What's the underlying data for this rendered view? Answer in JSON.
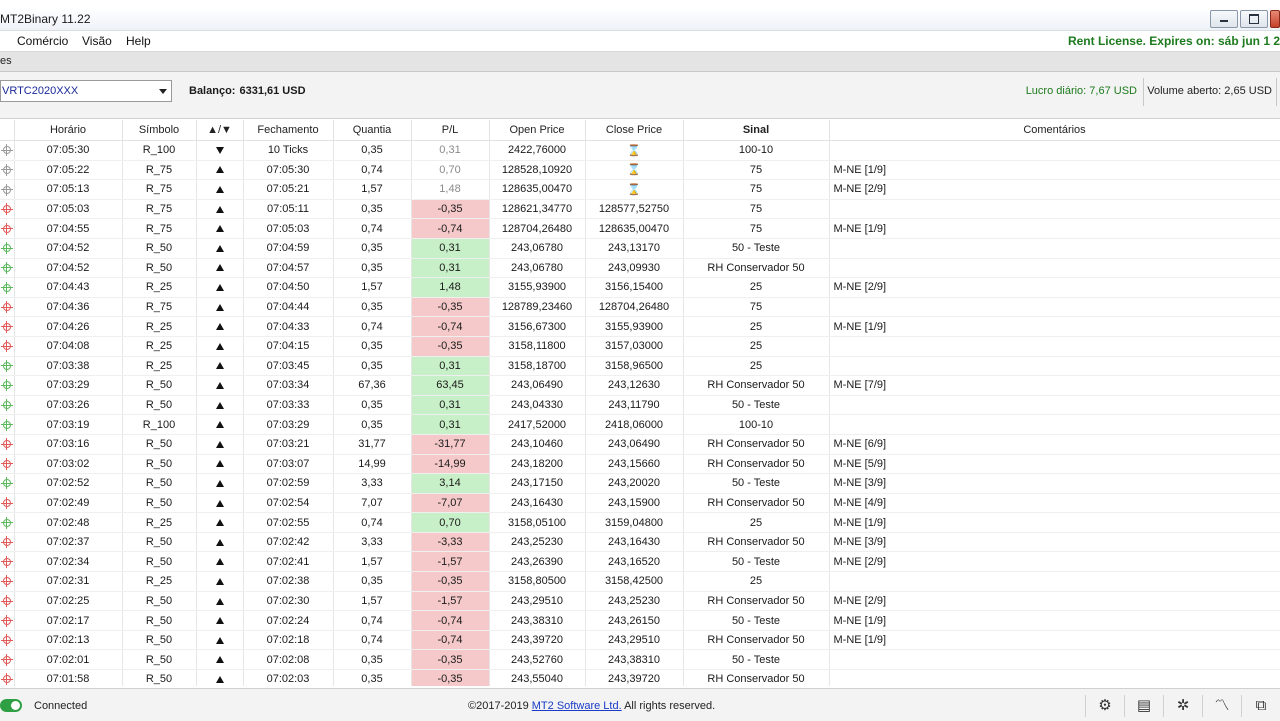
{
  "window": {
    "title": "MT2Binary 11.22"
  },
  "menu": {
    "items": [
      "Comércio",
      "Visão",
      "Help"
    ],
    "license": "Rent License. Expires on: sáb jun 1 2"
  },
  "tabstrip": {
    "label": "es"
  },
  "toolbar": {
    "account": "VRTC2020XXX",
    "balance_label": "Balanço:",
    "balance_value": "6331,61 USD",
    "lucro_label": "Lucro diário:",
    "lucro_value": "7,67 USD",
    "volume_label": "Volume aberto:",
    "volume_value": "2,65 USD"
  },
  "table": {
    "headers": [
      "Horário",
      "Símbolo",
      "▲/▼",
      "Fechamento",
      "Quantia",
      "P/L",
      "Open Price",
      "Close Price",
      "Sinal",
      "Comentários"
    ],
    "rows": [
      {
        "status": "open",
        "time": "07:05:30",
        "symbol": "R_100",
        "dir": "down",
        "close": "10 Ticks",
        "qty": "0,35",
        "pl": "0,31",
        "open": "2422,76000",
        "close_price": "⌛",
        "signal": "100-10",
        "comment": ""
      },
      {
        "status": "open",
        "time": "07:05:22",
        "symbol": "R_75",
        "dir": "up",
        "close": "07:05:30",
        "qty": "0,74",
        "pl": "0,70",
        "open": "128528,10920",
        "close_price": "⌛",
        "signal": "75",
        "comment": "M-NE [1/9]"
      },
      {
        "status": "open",
        "time": "07:05:13",
        "symbol": "R_75",
        "dir": "up",
        "close": "07:05:21",
        "qty": "1,57",
        "pl": "1,48",
        "open": "128635,00470",
        "close_price": "⌛",
        "signal": "75",
        "comment": "M-NE [2/9]"
      },
      {
        "status": "loss",
        "time": "07:05:03",
        "symbol": "R_75",
        "dir": "up",
        "close": "07:05:11",
        "qty": "0,35",
        "pl": "-0,35",
        "open": "128621,34770",
        "close_price": "128577,52750",
        "signal": "75",
        "comment": ""
      },
      {
        "status": "loss",
        "time": "07:04:55",
        "symbol": "R_75",
        "dir": "up",
        "close": "07:05:03",
        "qty": "0,74",
        "pl": "-0,74",
        "open": "128704,26480",
        "close_price": "128635,00470",
        "signal": "75",
        "comment": "M-NE [1/9]"
      },
      {
        "status": "win",
        "time": "07:04:52",
        "symbol": "R_50",
        "dir": "up",
        "close": "07:04:59",
        "qty": "0,35",
        "pl": "0,31",
        "open": "243,06780",
        "close_price": "243,13170",
        "signal": "50 - Teste",
        "comment": ""
      },
      {
        "status": "win",
        "time": "07:04:52",
        "symbol": "R_50",
        "dir": "up",
        "close": "07:04:57",
        "qty": "0,35",
        "pl": "0,31",
        "open": "243,06780",
        "close_price": "243,09930",
        "signal": "RH Conservador 50",
        "comment": ""
      },
      {
        "status": "win",
        "time": "07:04:43",
        "symbol": "R_25",
        "dir": "up",
        "close": "07:04:50",
        "qty": "1,57",
        "pl": "1,48",
        "open": "3155,93900",
        "close_price": "3156,15400",
        "signal": "25",
        "comment": "M-NE [2/9]"
      },
      {
        "status": "loss",
        "time": "07:04:36",
        "symbol": "R_75",
        "dir": "up",
        "close": "07:04:44",
        "qty": "0,35",
        "pl": "-0,35",
        "open": "128789,23460",
        "close_price": "128704,26480",
        "signal": "75",
        "comment": ""
      },
      {
        "status": "loss",
        "time": "07:04:26",
        "symbol": "R_25",
        "dir": "up",
        "close": "07:04:33",
        "qty": "0,74",
        "pl": "-0,74",
        "open": "3156,67300",
        "close_price": "3155,93900",
        "signal": "25",
        "comment": "M-NE [1/9]"
      },
      {
        "status": "loss",
        "time": "07:04:08",
        "symbol": "R_25",
        "dir": "up",
        "close": "07:04:15",
        "qty": "0,35",
        "pl": "-0,35",
        "open": "3158,11800",
        "close_price": "3157,03000",
        "signal": "25",
        "comment": ""
      },
      {
        "status": "win",
        "time": "07:03:38",
        "symbol": "R_25",
        "dir": "up",
        "close": "07:03:45",
        "qty": "0,35",
        "pl": "0,31",
        "open": "3158,18700",
        "close_price": "3158,96500",
        "signal": "25",
        "comment": ""
      },
      {
        "status": "win",
        "time": "07:03:29",
        "symbol": "R_50",
        "dir": "up",
        "close": "07:03:34",
        "qty": "67,36",
        "pl": "63,45",
        "open": "243,06490",
        "close_price": "243,12630",
        "signal": "RH Conservador 50",
        "comment": "M-NE [7/9]"
      },
      {
        "status": "win",
        "time": "07:03:26",
        "symbol": "R_50",
        "dir": "up",
        "close": "07:03:33",
        "qty": "0,35",
        "pl": "0,31",
        "open": "243,04330",
        "close_price": "243,11790",
        "signal": "50 - Teste",
        "comment": ""
      },
      {
        "status": "win",
        "time": "07:03:19",
        "symbol": "R_100",
        "dir": "up",
        "close": "07:03:29",
        "qty": "0,35",
        "pl": "0,31",
        "open": "2417,52000",
        "close_price": "2418,06000",
        "signal": "100-10",
        "comment": ""
      },
      {
        "status": "loss",
        "time": "07:03:16",
        "symbol": "R_50",
        "dir": "up",
        "close": "07:03:21",
        "qty": "31,77",
        "pl": "-31,77",
        "open": "243,10460",
        "close_price": "243,06490",
        "signal": "RH Conservador 50",
        "comment": "M-NE [6/9]"
      },
      {
        "status": "loss",
        "time": "07:03:02",
        "symbol": "R_50",
        "dir": "up",
        "close": "07:03:07",
        "qty": "14,99",
        "pl": "-14,99",
        "open": "243,18200",
        "close_price": "243,15660",
        "signal": "RH Conservador 50",
        "comment": "M-NE [5/9]"
      },
      {
        "status": "win",
        "time": "07:02:52",
        "symbol": "R_50",
        "dir": "up",
        "close": "07:02:59",
        "qty": "3,33",
        "pl": "3,14",
        "open": "243,17150",
        "close_price": "243,20020",
        "signal": "50 - Teste",
        "comment": "M-NE [3/9]"
      },
      {
        "status": "loss",
        "time": "07:02:49",
        "symbol": "R_50",
        "dir": "up",
        "close": "07:02:54",
        "qty": "7,07",
        "pl": "-7,07",
        "open": "243,16430",
        "close_price": "243,15900",
        "signal": "RH Conservador 50",
        "comment": "M-NE [4/9]"
      },
      {
        "status": "win",
        "time": "07:02:48",
        "symbol": "R_25",
        "dir": "up",
        "close": "07:02:55",
        "qty": "0,74",
        "pl": "0,70",
        "open": "3158,05100",
        "close_price": "3159,04800",
        "signal": "25",
        "comment": "M-NE [1/9]"
      },
      {
        "status": "loss",
        "time": "07:02:37",
        "symbol": "R_50",
        "dir": "up",
        "close": "07:02:42",
        "qty": "3,33",
        "pl": "-3,33",
        "open": "243,25230",
        "close_price": "243,16430",
        "signal": "RH Conservador 50",
        "comment": "M-NE [3/9]"
      },
      {
        "status": "loss",
        "time": "07:02:34",
        "symbol": "R_50",
        "dir": "up",
        "close": "07:02:41",
        "qty": "1,57",
        "pl": "-1,57",
        "open": "243,26390",
        "close_price": "243,16520",
        "signal": "50 - Teste",
        "comment": "M-NE [2/9]"
      },
      {
        "status": "loss",
        "time": "07:02:31",
        "symbol": "R_25",
        "dir": "up",
        "close": "07:02:38",
        "qty": "0,35",
        "pl": "-0,35",
        "open": "3158,80500",
        "close_price": "3158,42500",
        "signal": "25",
        "comment": ""
      },
      {
        "status": "loss",
        "time": "07:02:25",
        "symbol": "R_50",
        "dir": "up",
        "close": "07:02:30",
        "qty": "1,57",
        "pl": "-1,57",
        "open": "243,29510",
        "close_price": "243,25230",
        "signal": "RH Conservador 50",
        "comment": "M-NE [2/9]"
      },
      {
        "status": "loss",
        "time": "07:02:17",
        "symbol": "R_50",
        "dir": "up",
        "close": "07:02:24",
        "qty": "0,74",
        "pl": "-0,74",
        "open": "243,38310",
        "close_price": "243,26150",
        "signal": "50 - Teste",
        "comment": "M-NE [1/9]"
      },
      {
        "status": "loss",
        "time": "07:02:13",
        "symbol": "R_50",
        "dir": "up",
        "close": "07:02:18",
        "qty": "0,74",
        "pl": "-0,74",
        "open": "243,39720",
        "close_price": "243,29510",
        "signal": "RH Conservador 50",
        "comment": "M-NE [1/9]"
      },
      {
        "status": "loss",
        "time": "07:02:01",
        "symbol": "R_50",
        "dir": "up",
        "close": "07:02:08",
        "qty": "0,35",
        "pl": "-0,35",
        "open": "243,52760",
        "close_price": "243,38310",
        "signal": "50 - Teste",
        "comment": ""
      },
      {
        "status": "loss",
        "time": "07:01:58",
        "symbol": "R_50",
        "dir": "up",
        "close": "07:02:03",
        "qty": "0,35",
        "pl": "-0,35",
        "open": "243,55040",
        "close_price": "243,39720",
        "signal": "RH Conservador 50",
        "comment": ""
      }
    ]
  },
  "status": {
    "connected": "Connected",
    "copyright_prefix": "©2017-2019 ",
    "copyright_link": "MT2 Software Ltd.",
    "copyright_suffix": " All rights reserved.",
    "icons": [
      "gear-icon",
      "report-icon",
      "network-icon",
      "chart-icon",
      "windows-icon"
    ]
  },
  "colors": {
    "win_bg": "#c8f0c8",
    "loss_bg": "#f5c9c9",
    "open_marker": "#9a9a9a",
    "win_marker": "#5cb85c",
    "loss_marker": "#e05a5a",
    "license_green": "#1d7a1d"
  }
}
